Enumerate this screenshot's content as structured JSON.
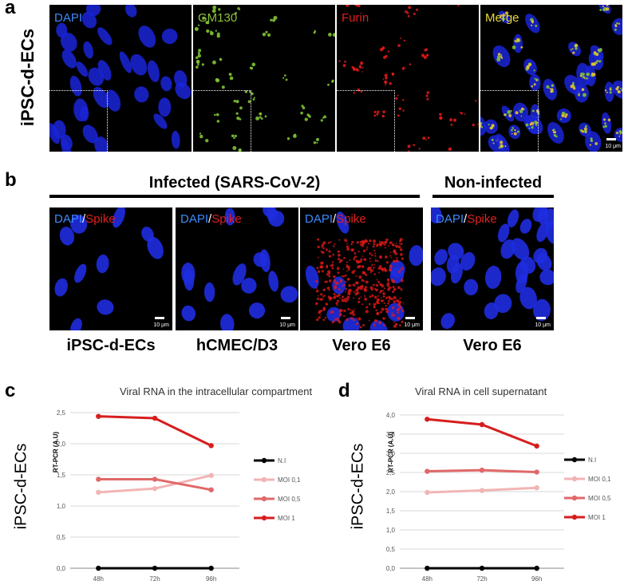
{
  "panel_a": {
    "letter": "a",
    "row_label": "iPSC-d-ECs",
    "images": [
      {
        "channel": "DAPI",
        "color": "#3d8bff"
      },
      {
        "channel": "GM130",
        "color": "#8fc23a"
      },
      {
        "channel": "Furin",
        "color": "#e02020"
      },
      {
        "channel": "Merge",
        "color": "#e8d83a"
      }
    ],
    "scale": "10 μm"
  },
  "panel_b": {
    "letter": "b",
    "infected_header": "Infected (SARS-CoV-2)",
    "noninfected_header": "Non-infected",
    "label_dapi": "DAPI",
    "label_sep": "/",
    "label_spike": "Spike",
    "dapi_color": "#3d8bff",
    "spike_color": "#e02020",
    "scale": "10 μm",
    "cells": [
      "iPSC-d-ECs",
      "hCMEC/D3",
      "Vero E6",
      "Vero E6"
    ]
  },
  "panel_c": {
    "letter": "c",
    "side_label": "iPSC-d-ECs",
    "title": "Viral RNA in the intracellular compartment",
    "ylabel": "RT-PCR (A.U)"
  },
  "panel_d": {
    "letter": "d",
    "side_label": "iPSC-d-ECs",
    "title": "Viral RNA in cell supernatant",
    "ylabel": "RT-PCR (A.U)"
  },
  "chart_data": [
    {
      "type": "line",
      "title": "Viral RNA in the intracellular compartment",
      "ylabel": "RT-PCR (A.U)",
      "x": [
        "48h",
        "72h",
        "96h"
      ],
      "ylim": [
        0,
        2.5
      ],
      "yticks": [
        "0,0",
        "0,5",
        "1,0",
        "1,5",
        "2,0",
        "2,5"
      ],
      "grid": true,
      "legend": "right",
      "series": [
        {
          "name": "N.I",
          "color": "#000000",
          "values": [
            0.0,
            0.0,
            0.0
          ]
        },
        {
          "name": "MOI 0,1",
          "color": "#f2b4b4",
          "values": [
            1.22,
            1.28,
            1.49
          ]
        },
        {
          "name": "MOI 0,5",
          "color": "#e06868",
          "values": [
            1.43,
            1.43,
            1.26
          ]
        },
        {
          "name": "MOI 1",
          "color": "#d71e1e",
          "values": [
            2.44,
            2.41,
            1.97
          ]
        }
      ]
    },
    {
      "type": "line",
      "title": "Viral RNA in cell supernatant",
      "ylabel": "RT-PCR (A.U)",
      "x": [
        "48h",
        "72h",
        "96h"
      ],
      "ylim": [
        0,
        4.0
      ],
      "yticks": [
        "0,0",
        "0,5",
        "1,0",
        "1,5",
        "2,0",
        "2,5",
        "3,0",
        "3,5",
        "4,0"
      ],
      "grid": true,
      "legend": "right",
      "series": [
        {
          "name": "N.I",
          "color": "#000000",
          "values": [
            0.0,
            0.0,
            0.0
          ]
        },
        {
          "name": "MOI 0,1",
          "color": "#f2b4b4",
          "values": [
            1.98,
            2.03,
            2.1
          ]
        },
        {
          "name": "MOI 0,5",
          "color": "#e06868",
          "values": [
            2.53,
            2.56,
            2.51
          ]
        },
        {
          "name": "MOI 1",
          "color": "#d71e1e",
          "values": [
            3.89,
            3.75,
            3.19
          ]
        }
      ]
    }
  ]
}
